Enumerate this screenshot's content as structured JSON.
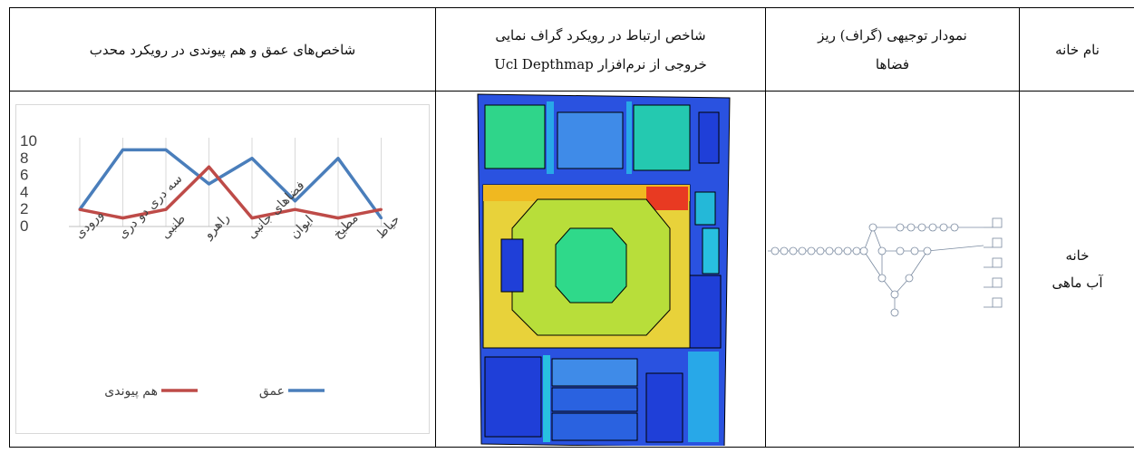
{
  "header": {
    "col1": "شاخص‌های عمق و هم پیوندی در رویکرد محدب",
    "col2_line1": "شاخص ارتباط در رویکرد گراف نمایی",
    "col2_line2": "خروجی از نرم‌افزار Ucl Depthmap",
    "col3_line1": "نمودار توجیهی (گراف) ریز",
    "col3_line2": "فضاها",
    "col4": "نام خانه"
  },
  "row": {
    "house_line1": "خانه",
    "house_line2": "آب ماهی"
  },
  "colors": {
    "depth": "#4a7ebb",
    "integration": "#be4b48"
  },
  "chart_data": {
    "type": "line",
    "categories": [
      "ورودی",
      "سه دری دو دری",
      "طنبی",
      "راهرو",
      "فضاهای جانبی",
      "ایوان",
      "مطبخ",
      "حیاط"
    ],
    "series": [
      {
        "name": "عمق",
        "values": [
          2,
          9,
          9,
          5,
          8,
          3,
          8,
          1
        ]
      },
      {
        "name": "هم پیوندی",
        "values": [
          2,
          1,
          2,
          7,
          1,
          2,
          1,
          2
        ]
      }
    ],
    "yticks": [
      "0",
      "2",
      "4",
      "6",
      "8",
      "10"
    ],
    "ylim": [
      0,
      10
    ],
    "legend_position": "bottom"
  }
}
